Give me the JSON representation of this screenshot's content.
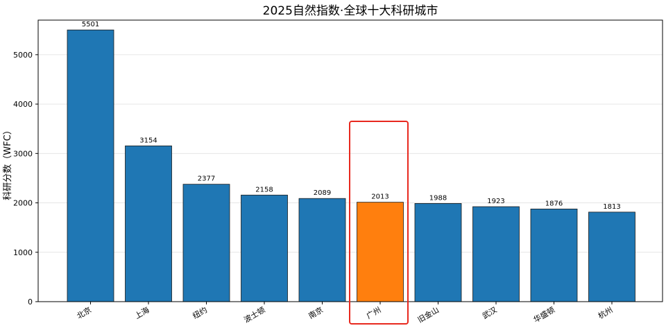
{
  "chart_data": {
    "type": "bar",
    "title": "2025自然指数·全球十大科研城市",
    "xlabel": "",
    "ylabel": "科研分数（WFC）",
    "categories": [
      "北京",
      "上海",
      "纽约",
      "波士顿",
      "南京",
      "广州",
      "旧金山",
      "武汉",
      "华盛顿",
      "杭州"
    ],
    "values": [
      5501,
      3154,
      2377,
      2158,
      2089,
      2013,
      1988,
      1923,
      1876,
      1813
    ],
    "ylim": [
      0,
      5700
    ],
    "yticks": [
      0,
      1000,
      2000,
      3000,
      4000,
      5000
    ],
    "grid": true,
    "highlight_category": "广州",
    "colors": {
      "bar": "#1f77b4",
      "highlight_bar": "#ff7f0e",
      "highlight_box": "#e8281e",
      "grid": "#e6e6e6"
    }
  }
}
